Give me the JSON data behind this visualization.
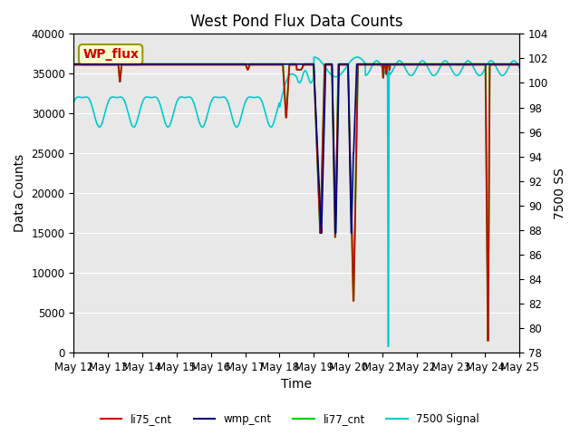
{
  "title": "West Pond Flux Data Counts",
  "xlabel": "Time",
  "ylabel_left": "Data Counts",
  "ylabel_right": "7500 SS",
  "ylim_left": [
    0,
    40000
  ],
  "ylim_right": [
    78,
    104
  ],
  "yticks_left": [
    0,
    5000,
    10000,
    15000,
    20000,
    25000,
    30000,
    35000,
    40000
  ],
  "yticks_right": [
    78,
    80,
    82,
    84,
    86,
    88,
    90,
    92,
    94,
    96,
    98,
    100,
    102,
    104
  ],
  "background_color": "#e8e8e8",
  "wp_flux_box_color": "#ffffcc",
  "wp_flux_text_color": "#cc0000",
  "title_fontsize": 12,
  "axis_label_fontsize": 10,
  "xtick_labels": [
    "May 12",
    "May 13",
    "May 14",
    "May 15",
    "May 16",
    "May 17",
    "May 18",
    "May 19",
    "May 20",
    "May 21",
    "May 22",
    "May 23",
    "May 24",
    "May 25"
  ],
  "color_li75": "#cc0000",
  "color_wmp": "#000080",
  "color_li77": "#00cc00",
  "color_7500": "#00cccc"
}
